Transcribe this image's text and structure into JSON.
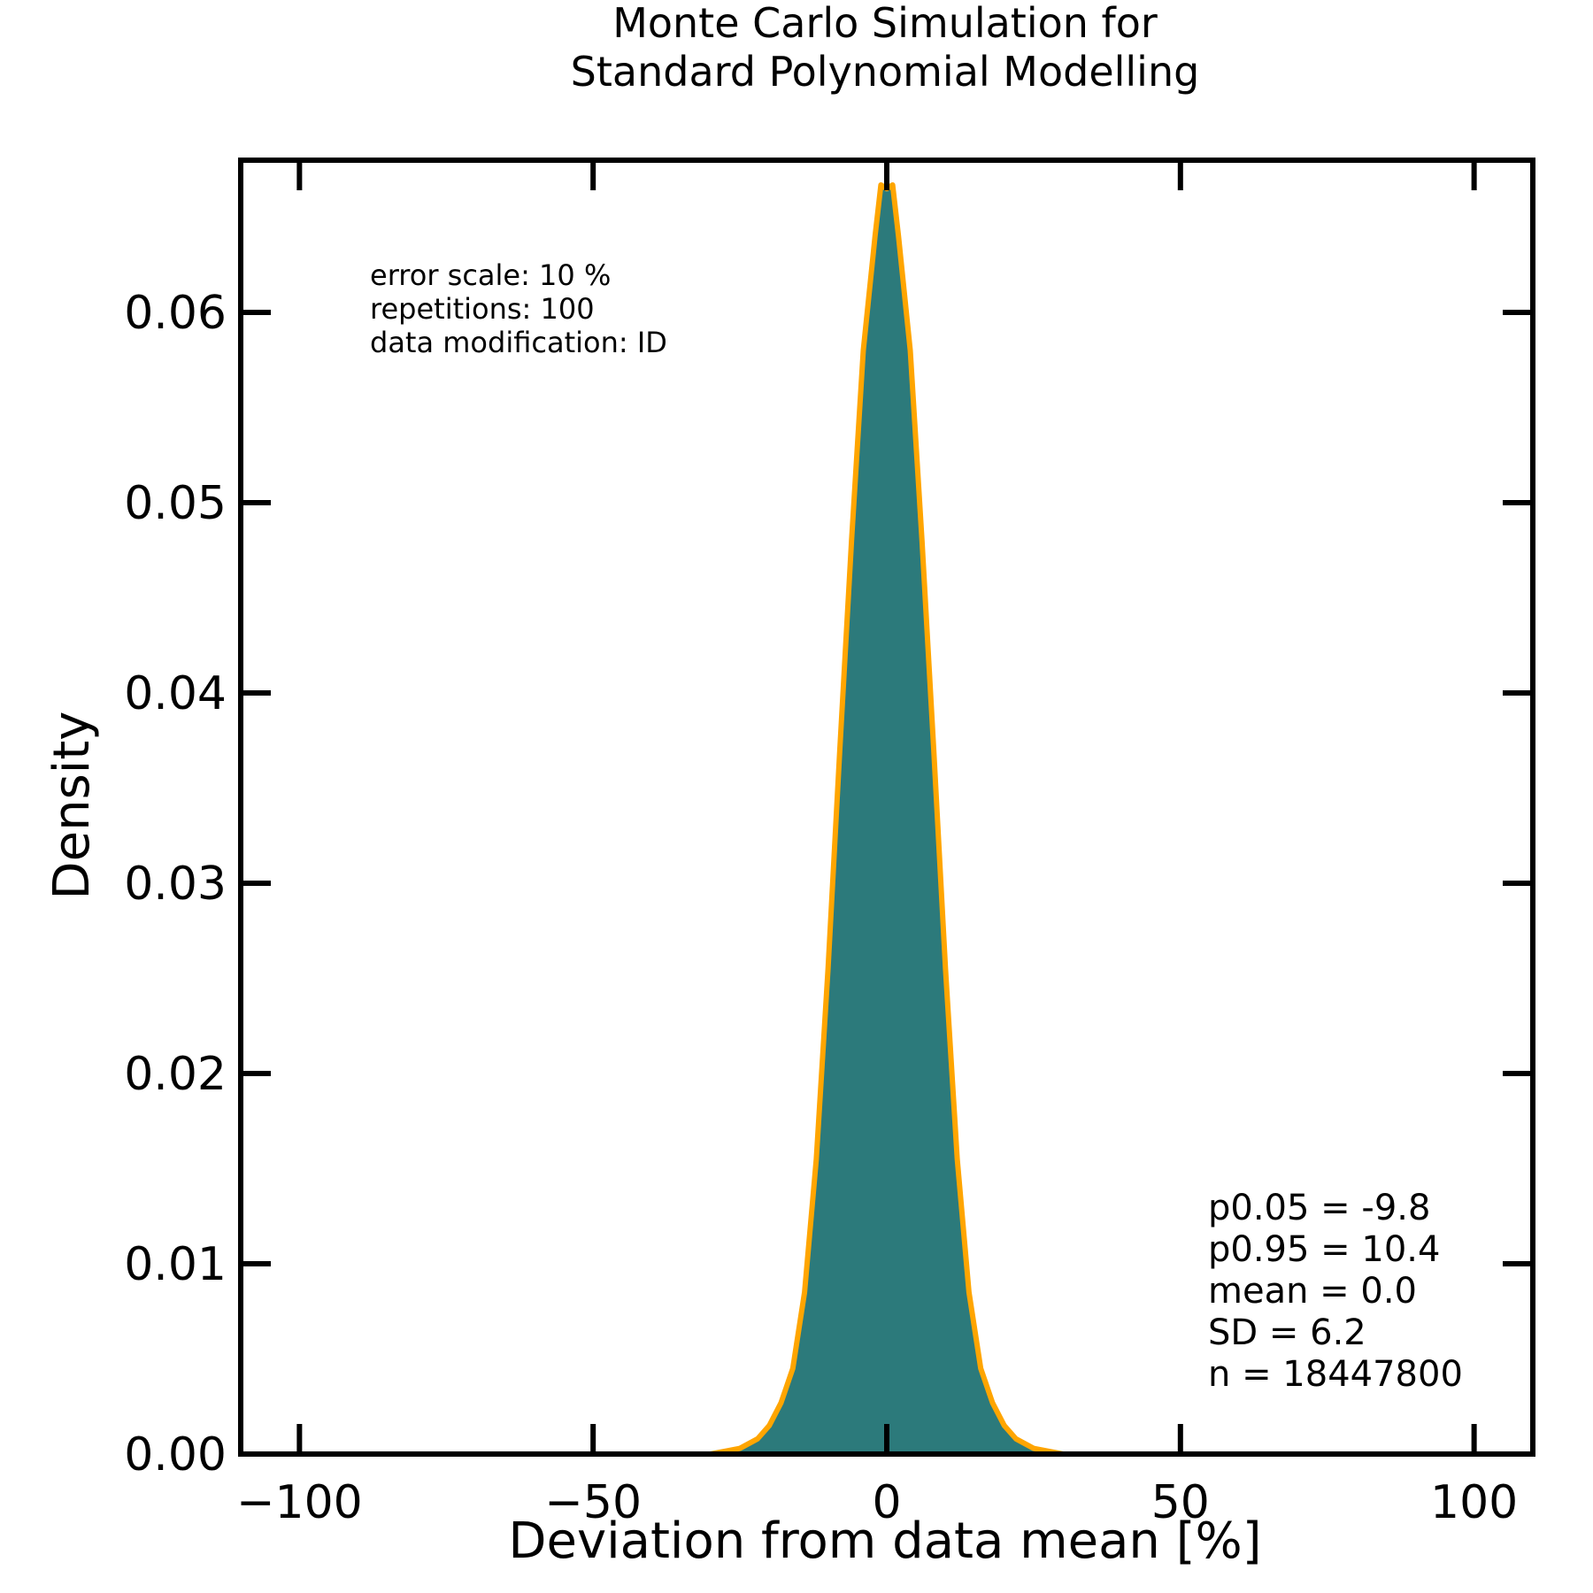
{
  "chart_data": {
    "type": "area",
    "title_lines": [
      "Monte Carlo Simulation for",
      "Standard Polynomial Modelling"
    ],
    "xlabel": "Deviation from data mean [%]",
    "ylabel": "Density",
    "xlim": [
      -110,
      110
    ],
    "ylim": [
      0,
      0.068
    ],
    "x_ticks": [
      -100,
      -50,
      0,
      50,
      100
    ],
    "x_tick_labels": [
      "−100",
      "−50",
      "0",
      "50",
      "100"
    ],
    "y_ticks": [
      0.0,
      0.01,
      0.02,
      0.03,
      0.04,
      0.05,
      0.06
    ],
    "y_tick_labels": [
      "0.00",
      "0.01",
      "0.02",
      "0.03",
      "0.04",
      "0.05",
      "0.06"
    ],
    "grid": false,
    "annotation_top_left": [
      "error scale: 10 %",
      "repetitions: 100",
      "data modification: ID"
    ],
    "annotation_bottom_right": [
      "p0.05 = -9.8",
      "p0.95 = 10.4",
      "mean = 0.0",
      "SD = 6.2",
      "n = 18447800"
    ],
    "series": [
      {
        "kind": "histogram",
        "color": "#2c7a7b",
        "x": [
          -30,
          -25,
          -22,
          -20,
          -18,
          -16,
          -14,
          -12,
          -10,
          -8,
          -6,
          -4,
          -2,
          -1,
          0,
          1,
          2,
          4,
          6,
          8,
          10,
          12,
          14,
          16,
          18,
          20,
          22,
          25,
          30
        ],
        "y": [
          0.0,
          0.0003,
          0.0008,
          0.0015,
          0.0027,
          0.0045,
          0.0085,
          0.0155,
          0.0255,
          0.037,
          0.048,
          0.058,
          0.064,
          0.0665,
          0.0665,
          0.0665,
          0.064,
          0.058,
          0.048,
          0.037,
          0.0255,
          0.0155,
          0.0085,
          0.0045,
          0.0027,
          0.0015,
          0.0008,
          0.0003,
          0.0
        ]
      },
      {
        "kind": "kde",
        "color": "#ffa500",
        "x": [
          -30,
          -25,
          -22,
          -20,
          -18,
          -16,
          -14,
          -12,
          -10,
          -8,
          -6,
          -4,
          -2,
          -1,
          0,
          1,
          2,
          4,
          6,
          8,
          10,
          12,
          14,
          16,
          18,
          20,
          22,
          25,
          30
        ],
        "y": [
          0.0,
          0.0003,
          0.0008,
          0.0015,
          0.0027,
          0.0045,
          0.0085,
          0.0155,
          0.0255,
          0.037,
          0.048,
          0.058,
          0.064,
          0.0667,
          0.0665,
          0.0667,
          0.064,
          0.058,
          0.048,
          0.037,
          0.0255,
          0.0155,
          0.0085,
          0.0045,
          0.0027,
          0.0015,
          0.0008,
          0.0003,
          0.0
        ]
      }
    ]
  }
}
